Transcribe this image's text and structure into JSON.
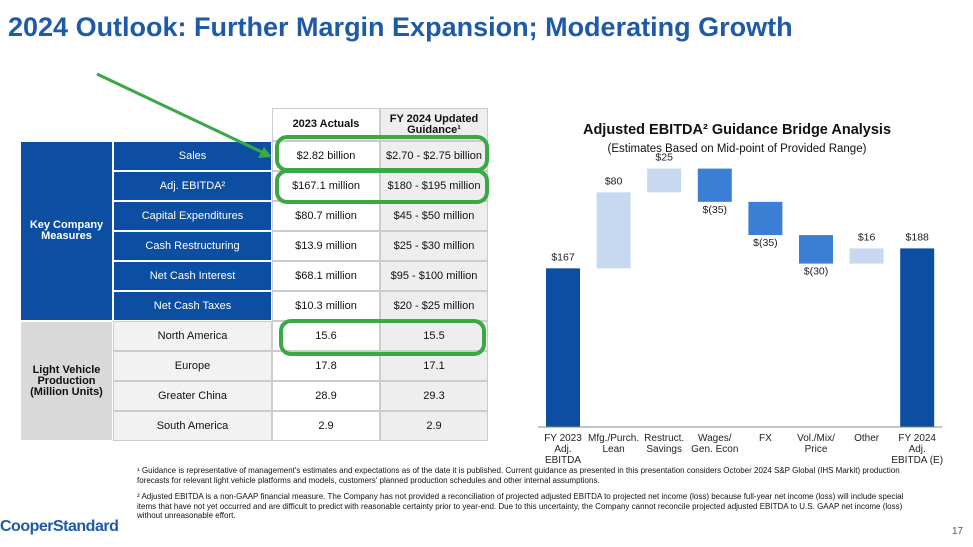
{
  "title": "2024 Outlook: Further Margin Expansion; Moderating Growth",
  "table": {
    "columns": [
      "2023 Actuals",
      "FY 2024 Updated Guidance¹"
    ],
    "groups": [
      {
        "label": "Key Company Measures",
        "rows": [
          [
            "Sales",
            "$2.82 billion",
            "$2.70 - $2.75 billion"
          ],
          [
            "Adj. EBITDA²",
            "$167.1 million",
            "$180 - $195 million"
          ],
          [
            "Capital Expenditures",
            "$80.7 million",
            "$45 - $50 million"
          ],
          [
            "Cash Restructuring",
            "$13.9 million",
            "$25 - $30 million"
          ],
          [
            "Net Cash Interest",
            "$68.1 million",
            "$95 - $100 million"
          ],
          [
            "Net Cash Taxes",
            "$10.3 million",
            "$20 - $25 million"
          ]
        ]
      },
      {
        "label": "Light Vehicle Production (Million Units)",
        "rows": [
          [
            "North America",
            "15.6",
            "15.5"
          ],
          [
            "Europe",
            "17.8",
            "17.1"
          ],
          [
            "Greater China",
            "28.9",
            "29.3"
          ],
          [
            "South America",
            "2.9",
            "2.9"
          ]
        ]
      }
    ]
  },
  "chart_data": {
    "type": "waterfall",
    "title": "Adjusted EBITDA² Guidance Bridge Analysis",
    "subtitle": "(Estimates Based on Mid-point of Provided Range)",
    "categories": [
      "FY 2023 Adj. EBITDA",
      "Mfg./Purch. Lean",
      "Restruct. Savings",
      "Wages/ Gen. Econ",
      "FX",
      "Vol./Mix/ Price",
      "Other",
      "FY 2024 Adj. EBITDA (E)"
    ],
    "values": [
      167,
      80,
      25,
      -35,
      -35,
      -30,
      16,
      188
    ],
    "value_labels": [
      "$167",
      "$80",
      "$25",
      "$(35)",
      "$(35)",
      "$(30)",
      "$16",
      "$188"
    ],
    "measure": [
      "total",
      "relative",
      "relative",
      "relative",
      "relative",
      "relative",
      "relative",
      "total"
    ],
    "colors": {
      "total": "#0b4ea2",
      "increase": "#c6d9f1",
      "decrease": "#3a7fd5"
    },
    "ylim": [
      0,
      200
    ]
  },
  "footnotes": [
    "¹ Guidance is representative of management's estimates and expectations as of the date it is published. Current guidance as presented in this presentation considers October 2024 S&P Global (IHS Markit) production forecasts for relevant light vehicle platforms and models, customers' planned production schedules and other internal assumptions.",
    "² Adjusted EBITDA is a non-GAAP financial measure. The Company has not provided a reconciliation of projected adjusted EBITDA to projected net income (loss) because full-year net income (loss) will include special items that have not yet occurred and are difficult to predict with reasonable certainty prior to year-end. Due to this uncertainty, the Company cannot reconcile projected adjusted EBITDA to U.S. GAAP net income (loss) without unreasonable effort."
  ],
  "logo": "CooperStandard",
  "page_number": "17"
}
